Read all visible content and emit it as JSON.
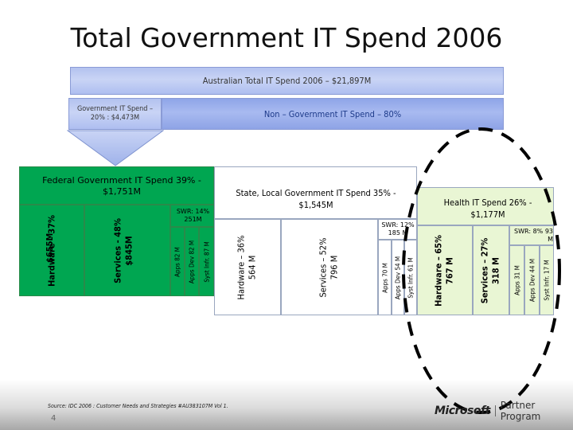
{
  "title": "Total Government IT Spend 2006",
  "australian_bar": "Australian Total IT Spend 2006 – $21,897M",
  "gov_box": "Government IT Spend – 20% : $4,473M",
  "non_gov": "Non – Government IT Spend – 80%",
  "federal": {
    "header": "Federal Government IT Spend 39% - $1,751M",
    "hardware": [
      "Hardware – 37%",
      "$655M"
    ],
    "services": [
      "Services - 48%",
      "$845M"
    ],
    "swr": "SWR: 14% 251M",
    "swr_items": [
      "Apps   82 M",
      "Apps Dev   82 M",
      "Syst Infr.   87 M"
    ]
  },
  "state": {
    "header": "State, Local Government IT Spend 35% - $1,545M",
    "hardware": [
      "Hardware – 36%",
      "564 M"
    ],
    "services": [
      "Services – 52%",
      "796 M"
    ],
    "swr": "SWR: 12% 185 M",
    "swr_items": [
      "Apps   70 M",
      "Apps Dev   54 M",
      "Syst Infr.   61 M"
    ]
  },
  "health": {
    "header": "Health IT Spend 26% - $1,177M",
    "hardware": [
      "Hardware – 65%",
      "767 M"
    ],
    "services": [
      "Services – 27%",
      "318 M"
    ],
    "swr": "SWR: 8% 93 M",
    "swr_items": [
      "Apps   31 M",
      "Apps Dev   44 M",
      "Syst Infr.   17 M"
    ]
  },
  "source": "Source: IDC 2006 : Customer Needs and Strategies #AU383107M Vol 1.",
  "page_number": "4",
  "brand": "Microsoft",
  "brand_sub": "Partner Program",
  "colors": {
    "federal": "#00a651",
    "state_health": "#e9f6d4",
    "bars": "#b3c2ef",
    "ellipse": "#000000"
  }
}
